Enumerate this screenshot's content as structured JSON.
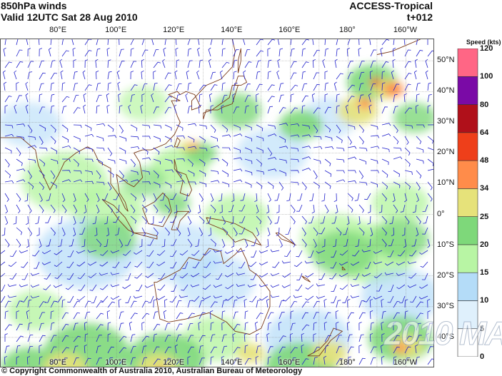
{
  "header": {
    "title": "850hPa winds",
    "valid": "Valid 12UTC Sat 28 Aug 2010",
    "model": "ACCESS-Tropical",
    "lead": "t+012"
  },
  "map": {
    "lon_range": [
      60,
      210
    ],
    "lat_range": [
      -50,
      57
    ],
    "lon_labels": [
      {
        "lon": 80,
        "text": "80°E"
      },
      {
        "lon": 100,
        "text": "100°E"
      },
      {
        "lon": 120,
        "text": "120°E"
      },
      {
        "lon": 140,
        "text": "140°E"
      },
      {
        "lon": 160,
        "text": "160°E"
      },
      {
        "lon": 180,
        "text": "180°"
      },
      {
        "lon": 200,
        "text": "160°W"
      }
    ],
    "lat_labels": [
      {
        "lat": 50,
        "text": "50°N"
      },
      {
        "lat": 40,
        "text": "40°N"
      },
      {
        "lat": 30,
        "text": "30°N"
      },
      {
        "lat": 20,
        "text": "20°N"
      },
      {
        "lat": 10,
        "text": "10°N"
      },
      {
        "lat": 0,
        "text": "0°"
      },
      {
        "lat": -10,
        "text": "10°S"
      },
      {
        "lat": -20,
        "text": "20°S"
      },
      {
        "lat": -30,
        "text": "30°S"
      },
      {
        "lat": -40,
        "text": "40°S"
      }
    ],
    "barb_color": "#2222cc",
    "coast_color": "#7a3a1a",
    "grid_color": "#777777"
  },
  "colorbar": {
    "title": "Speed (kts)",
    "levels": [
      0,
      5,
      10,
      15,
      20,
      25,
      34,
      48,
      64,
      80,
      100,
      120
    ],
    "colors": [
      "#ffffff",
      "#dff0fc",
      "#b4dcf8",
      "#b8f5a4",
      "#7ed87a",
      "#e6e27a",
      "#ff8c4a",
      "#ee3f1a",
      "#b0101a",
      "#7a0aa6",
      "#ff6685"
    ]
  },
  "copyright": "© Copyright Commonwealth of Australia 2010, Australian Bureau of Meteorology",
  "watermark": "2010 MA"
}
